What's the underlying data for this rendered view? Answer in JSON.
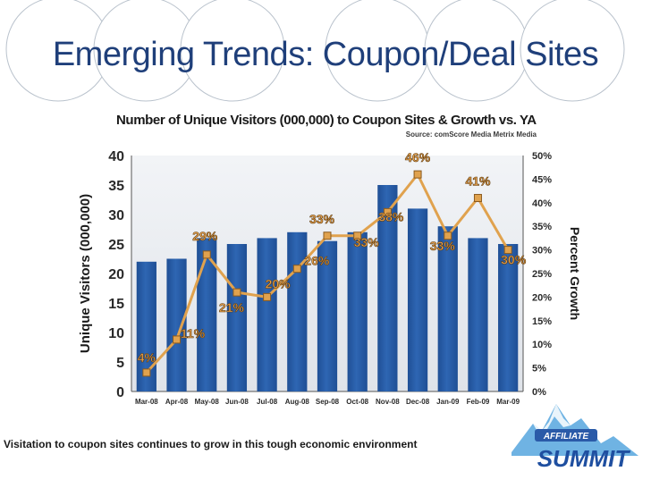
{
  "slide": {
    "title": "Emerging Trends: Coupon/Deal Sites",
    "caption": "Visitation to coupon sites continues to grow in this tough economic environment"
  },
  "logo": {
    "line1": "AFFILIATE",
    "line2": "SUMMIT"
  },
  "chart_data": {
    "type": "bar",
    "title": "Number of Unique Visitors (000,000) to Coupon Sites & Growth vs. YA",
    "source": "Source: comScore Media Metrix Media",
    "categories": [
      "Mar-08",
      "Apr-08",
      "May-08",
      "Jun-08",
      "Jul-08",
      "Aug-08",
      "Sep-08",
      "Oct-08",
      "Nov-08",
      "Dec-08",
      "Jan-09",
      "Feb-09",
      "Mar-09"
    ],
    "ylabel": "Unique Visitors (000,000)",
    "y2label": "Percent Growth",
    "ylim": [
      0,
      40
    ],
    "y2lim": [
      0,
      50
    ],
    "yticks": [
      0,
      5,
      10,
      15,
      20,
      25,
      30,
      35,
      40
    ],
    "y2ticks": [
      "0%",
      "5%",
      "10%",
      "15%",
      "20%",
      "25%",
      "30%",
      "35%",
      "40%",
      "45%",
      "50%"
    ],
    "series": [
      {
        "values": [
          22,
          22.5,
          26,
          25,
          26,
          27,
          25.5,
          27,
          35,
          31,
          28,
          26,
          25
        ]
      },
      {
        "axis": "right",
        "values": [
          4,
          11,
          29,
          21,
          20,
          26,
          33,
          33,
          38,
          46,
          33,
          41,
          30
        ],
        "labels": [
          "4%",
          "11%",
          "29%",
          "21%",
          "20%",
          "26%",
          "33%",
          "33%",
          "38%",
          "46%",
          "33%",
          "41%",
          "30%"
        ]
      }
    ],
    "colors": {
      "bar": "#2e66b3",
      "line": "#e0a24e",
      "label": "#e8a04a"
    }
  }
}
